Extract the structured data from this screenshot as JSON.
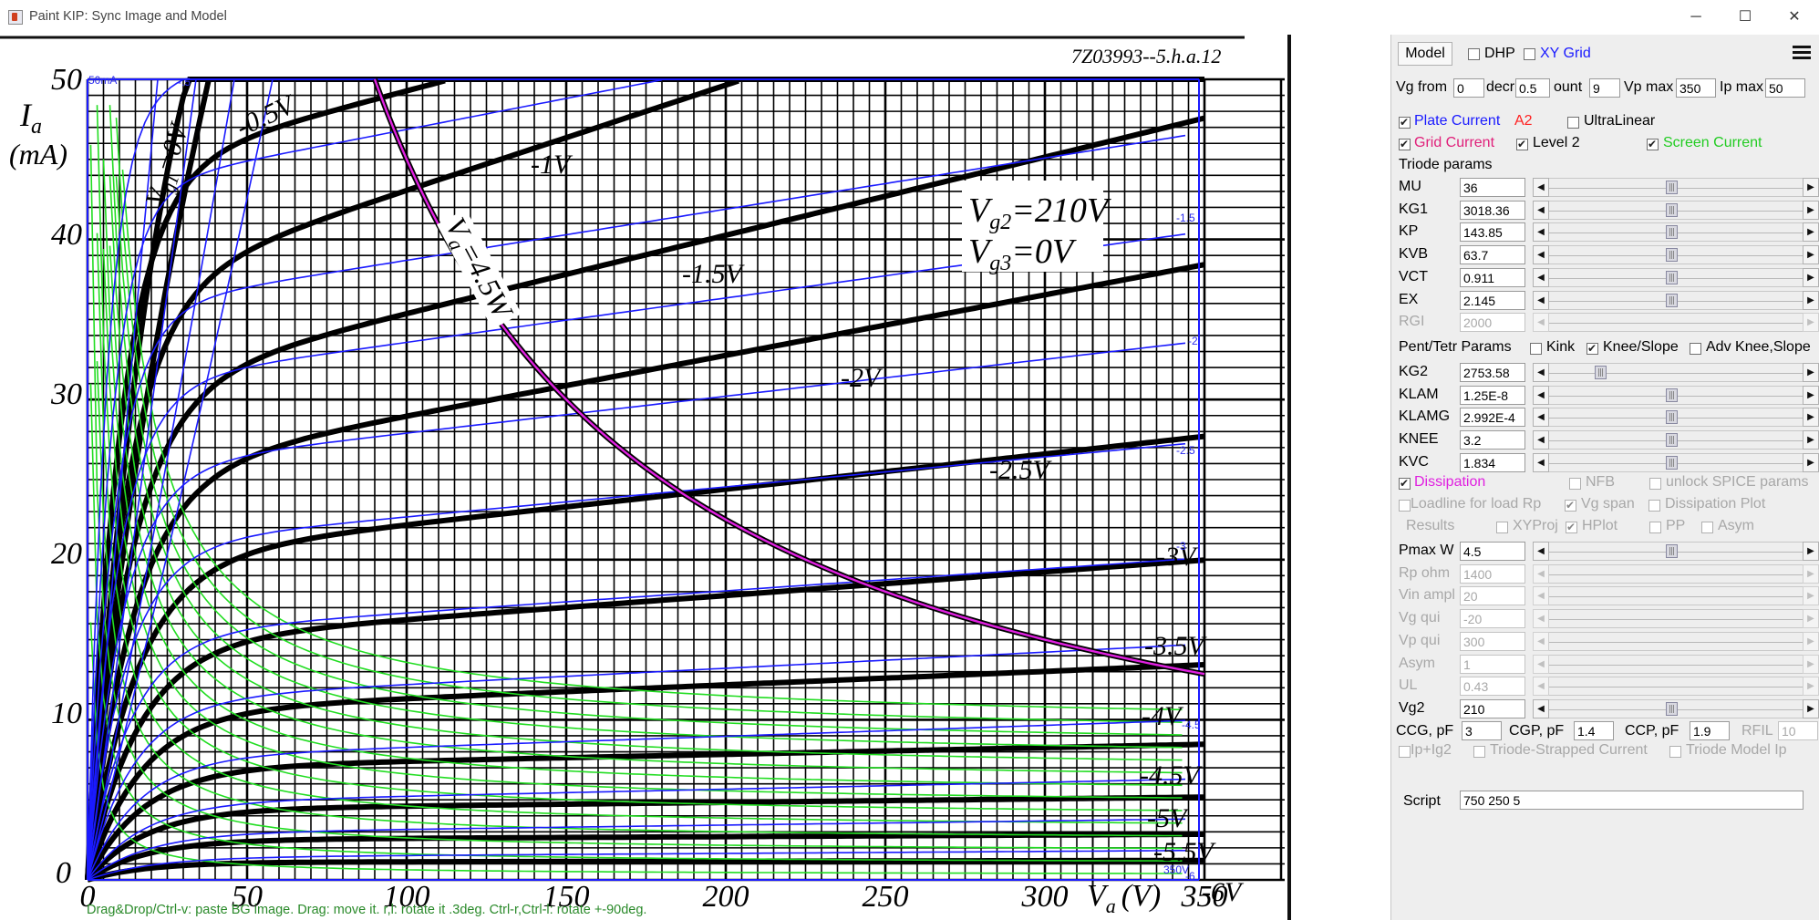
{
  "window": {
    "title": "Paint KIP: Sync Image and Model",
    "minimize": "─",
    "maximize": "☐",
    "close": "✕"
  },
  "plot": {
    "corner_label": "7Z03993--5.h.a.12",
    "y_axis_label_1": "I",
    "y_axis_label_sub": "a",
    "y_axis_label_2": "(mA)",
    "x_axis_label": "V",
    "x_axis_label_sub": "a",
    "x_axis_label_unit": "(V)",
    "y_ticks": [
      "0",
      "10",
      "20",
      "30",
      "40",
      "50"
    ],
    "x_ticks": [
      "0",
      "50",
      "100",
      "150",
      "200",
      "250",
      "300",
      "350"
    ],
    "annotation_vg2": "V",
    "annotation_vg2_sub": "g2",
    "annotation_vg2_val": "=210V",
    "annotation_vg3": "V",
    "annotation_vg3_sub": "g3",
    "annotation_vg3_val": "=0V",
    "annotation_dissipation": "V",
    "annotation_dissipation_sub": "a",
    "annotation_dissipation_val": "=4.5W",
    "vg1_label": "V",
    "vg1_label_sub": "g1",
    "vg1_label_val": "=0V",
    "curve_labels": [
      "-0.5V",
      "-1V",
      "-1.5V",
      "-2V",
      "-2.5V",
      "-3V",
      "-3.5V",
      "-4V",
      "-4.5V",
      "-5V",
      "-5.5V",
      "-6V"
    ],
    "small_labels": [
      "50mA",
      "-.5",
      "-1.5",
      "-2",
      "-2.5",
      "-3",
      "-4.5",
      "-6",
      "350V"
    ],
    "status_hint": "Drag&Drop/Ctrl-v: paste BG image. Drag: move it. r,l: rotate it .3deg. Ctrl-r,Ctrl-l: rotate +-90deg."
  },
  "panel": {
    "model_button": "Model",
    "dhp_label": "DHP",
    "xygrid_label": "XY Grid",
    "vg_from_label": "Vg from",
    "vg_from_value": "0",
    "decr_label": "decr",
    "decr_value": "0.5",
    "count_label": "ount",
    "count_value": "9",
    "vp_max_label": "Vp max",
    "vp_max_value": "350",
    "ip_max_label": "Ip max",
    "ip_max_value": "50",
    "plate_current_label": "Plate Current",
    "a2_label": "A2",
    "ultralinear_label": "UltraLinear",
    "grid_current_label": "Grid Current",
    "level2_label": "Level 2",
    "screen_current_label": "Screen Current",
    "triode_params_label": "Triode params",
    "triode_params": [
      {
        "name": "MU",
        "value": "36",
        "disabled": false
      },
      {
        "name": "KG1",
        "value": "3018.36",
        "disabled": false
      },
      {
        "name": "KP",
        "value": "143.85",
        "disabled": false
      },
      {
        "name": "KVB",
        "value": "63.7",
        "disabled": false
      },
      {
        "name": "VCT",
        "value": "0.911",
        "disabled": false
      },
      {
        "name": "EX",
        "value": "2.145",
        "disabled": false
      },
      {
        "name": "RGI",
        "value": "2000",
        "disabled": true
      }
    ],
    "pent_params_label": "Pent/Tetr Params",
    "kink_label": "Kink",
    "knee_slope_label": "Knee/Slope",
    "adv_knee_label": "Adv Knee,Slope",
    "pent_params": [
      {
        "name": "KG2",
        "value": "2753.58",
        "disabled": false
      },
      {
        "name": "KLAM",
        "value": "1.25E-8",
        "disabled": false
      },
      {
        "name": "KLAMG",
        "value": "2.992E-4",
        "disabled": false
      },
      {
        "name": "KNEE",
        "value": "3.2",
        "disabled": false
      },
      {
        "name": "KVC",
        "value": "1.834",
        "disabled": false
      }
    ],
    "dissipation_label": "Dissipation",
    "nfb_label": "NFB",
    "unlock_spice_label": "unlock SPICE params",
    "loadline_label": "Loadline for load Rp",
    "vg_span_label": "Vg span",
    "dissipation_plot_label": "Dissipation Plot",
    "results_label": "Results",
    "xyproj_label": "XYProj",
    "hplot_label": "HPlot",
    "pp_label": "PP",
    "asym_cb_label": "Asym",
    "circuit_params": [
      {
        "name": "Pmax W",
        "value": "4.5",
        "disabled": false
      },
      {
        "name": "Rp ohm",
        "value": "1400",
        "disabled": true
      },
      {
        "name": "Vin ampl",
        "value": "20",
        "disabled": true
      },
      {
        "name": "Vg qui",
        "value": "-20",
        "disabled": true
      },
      {
        "name": "Vp qui",
        "value": "300",
        "disabled": true
      },
      {
        "name": "Asym",
        "value": "1",
        "disabled": true
      },
      {
        "name": "UL",
        "value": "0.43",
        "disabled": true
      },
      {
        "name": "Vg2",
        "value": "210",
        "disabled": false
      }
    ],
    "ccg_label": "CCG, pF",
    "ccg_value": "3",
    "cgp_label": "CGP, pF",
    "cgp_value": "1.4",
    "ccp_label": "CCP, pF",
    "ccp_value": "1.9",
    "rfil_label": "RFIL",
    "rfil_value": "10",
    "ipig2_label": "Ip+Ig2",
    "triode_strapped_label": "Triode-Strapped Current",
    "triode_model_ip_label": "Triode Model Ip",
    "script_label": "Script",
    "script_value": "750 250 5",
    "colors": {
      "plate_current": "#1a1aff",
      "a2": "#ff2020",
      "grid_current": "#e0207a",
      "screen_current": "#22cc22",
      "dissipation": "#e020e0"
    }
  }
}
